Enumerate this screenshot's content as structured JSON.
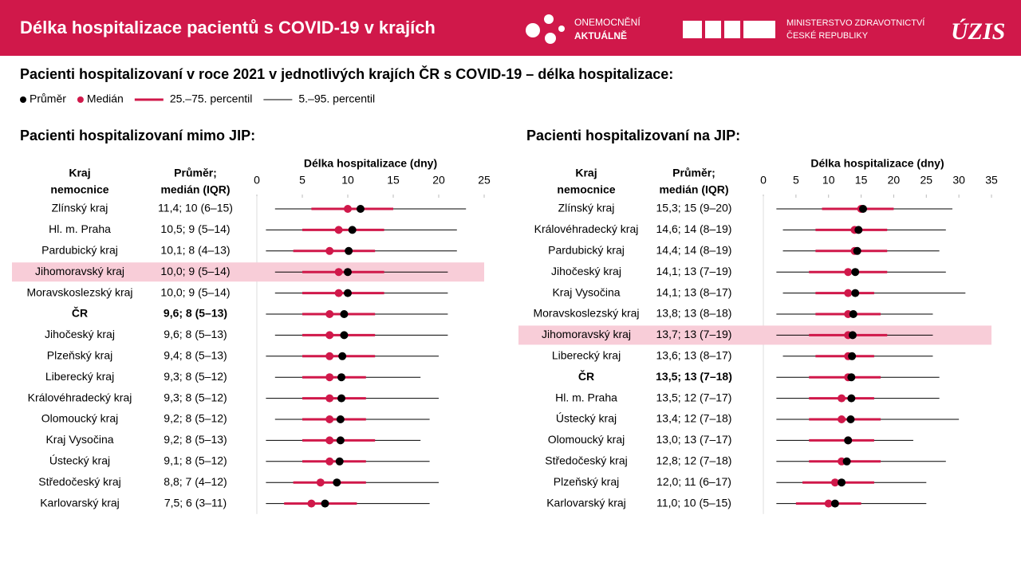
{
  "header": {
    "title": "Délka hospitalizace pacientů s COVID-19 v krajích",
    "logo1": [
      "ONEMOCNĚNÍ",
      "AKTUÁLNĚ"
    ],
    "logo2": [
      "MINISTERSTVO ZDRAVOTNICTVÍ",
      "ČESKÉ REPUBLIKY"
    ],
    "logo3": "ÚZIS"
  },
  "subtitle": "Pacienti hospitalizovaní v roce 2021 v jednotlivých krajích ČR s COVID-19 – délka hospitalizace:",
  "legend": [
    {
      "name": "Průměr",
      "color": "#000000"
    },
    {
      "name": "Medián",
      "color": "#d0184a"
    },
    {
      "name": "25.–75. percentil",
      "color": "#d0184a"
    },
    {
      "name": "5.–95. percentil",
      "color": "#000000"
    }
  ],
  "chart_data": [
    {
      "type": "range",
      "title": "Pacienti hospitalizovaní mimo JIP:",
      "x_label": "Délka hospitalizace (dny)",
      "col_headers": [
        [
          "Kraj",
          "nemocnice"
        ],
        [
          "Průměr;",
          "medián (IQR)"
        ]
      ],
      "categories": [
        "Zlínský kraj",
        "Hl. m. Praha",
        "Pardubický kraj",
        "Jihomoravský kraj",
        "Moravskoslezský kraj",
        "ČR",
        "Jihočeský kraj",
        "Plzeňský kraj",
        "Liberecký kraj",
        "Královéhradecký kraj",
        "Olomoucký kraj",
        "Kraj Vysočina",
        "Ústecký kraj",
        "Středočeský kraj",
        "Karlovarský kraj"
      ],
      "summaries": [
        "11,4; 10 (6–15)",
        "10,5; 9 (5–14)",
        "10,1; 8 (4–13)",
        "10,0; 9 (5–14)",
        "10,0; 9 (5–14)",
        "9,6; 8 (5–13)",
        "9,6; 8 (5–13)",
        "9,4; 8 (5–13)",
        "9,3; 8 (5–12)",
        "9,3; 8 (5–12)",
        "9,2; 8 (5–12)",
        "9,2; 8 (5–13)",
        "9,1; 8 (5–12)",
        "8,8; 7 (4–12)",
        "7,5; 6 (3–11)"
      ],
      "highlight_index": 3,
      "bold_index": 5,
      "xlim": [
        0,
        25
      ],
      "xticks": [
        0,
        5,
        10,
        15,
        20,
        25
      ],
      "series": [
        {
          "values": [
            11.4,
            10.5,
            10.1,
            10.0,
            10.0,
            9.6,
            9.6,
            9.4,
            9.3,
            9.3,
            9.2,
            9.2,
            9.1,
            8.8,
            7.5
          ]
        },
        {
          "values": [
            10,
            9,
            8,
            9,
            9,
            8,
            8,
            8,
            8,
            8,
            8,
            8,
            8,
            7,
            6
          ]
        },
        {
          "low": [
            6,
            5,
            4,
            5,
            5,
            5,
            5,
            5,
            5,
            5,
            5,
            5,
            5,
            4,
            3
          ],
          "high": [
            15,
            14,
            13,
            14,
            14,
            13,
            13,
            13,
            12,
            12,
            12,
            13,
            12,
            12,
            11
          ]
        },
        {
          "low": [
            2,
            1,
            1,
            2,
            2,
            1,
            2,
            1,
            2,
            1,
            2,
            1,
            1,
            1,
            1
          ],
          "high": [
            23,
            22,
            22,
            21,
            21,
            21,
            21,
            20,
            18,
            20,
            19,
            18,
            19,
            20,
            19
          ]
        }
      ]
    },
    {
      "type": "range",
      "title": "Pacienti hospitalizovaní na JIP:",
      "x_label": "Délka hospitalizace (dny)",
      "col_headers": [
        [
          "Kraj",
          "nemocnice"
        ],
        [
          "Průměr;",
          "medián (IQR)"
        ]
      ],
      "categories": [
        "Zlínský kraj",
        "Královéhradecký kraj",
        "Pardubický kraj",
        "Jihočeský kraj",
        "Kraj Vysočina",
        "Moravskoslezský kraj",
        "Jihomoravský kraj",
        "Liberecký kraj",
        "ČR",
        "Hl. m. Praha",
        "Ústecký kraj",
        "Olomoucký kraj",
        "Středočeský kraj",
        "Plzeňský kraj",
        "Karlovarský kraj"
      ],
      "summaries": [
        "15,3; 15 (9–20)",
        "14,6; 14 (8–19)",
        "14,4; 14 (8–19)",
        "14,1; 13 (7–19)",
        "14,1; 13 (8–17)",
        "13,8; 13 (8–18)",
        "13,7; 13 (7–19)",
        "13,6; 13 (8–17)",
        "13,5; 13 (7–18)",
        "13,5; 12 (7–17)",
        "13,4; 12 (7–18)",
        "13,0; 13 (7–17)",
        "12,8; 12 (7–18)",
        "12,0; 11 (6–17)",
        "11,0; 10 (5–15)"
      ],
      "highlight_index": 6,
      "bold_index": 8,
      "xlim": [
        0,
        35
      ],
      "xticks": [
        0,
        5,
        10,
        15,
        20,
        25,
        30,
        35
      ],
      "series": [
        {
          "values": [
            15.3,
            14.6,
            14.4,
            14.1,
            14.1,
            13.8,
            13.7,
            13.6,
            13.5,
            13.5,
            13.4,
            13.0,
            12.8,
            12.0,
            11.0
          ]
        },
        {
          "values": [
            15,
            14,
            14,
            13,
            13,
            13,
            13,
            13,
            13,
            12,
            12,
            13,
            12,
            11,
            10
          ]
        },
        {
          "low": [
            9,
            8,
            8,
            7,
            8,
            8,
            7,
            8,
            7,
            7,
            7,
            7,
            7,
            6,
            5
          ],
          "high": [
            20,
            19,
            19,
            19,
            17,
            18,
            19,
            17,
            18,
            17,
            18,
            17,
            18,
            17,
            15
          ]
        },
        {
          "low": [
            2,
            3,
            3,
            2,
            3,
            2,
            2,
            3,
            2,
            2,
            2,
            2,
            2,
            2,
            2
          ],
          "high": [
            29,
            28,
            27,
            28,
            31,
            26,
            26,
            26,
            27,
            27,
            30,
            23,
            28,
            25,
            25
          ]
        }
      ]
    }
  ]
}
